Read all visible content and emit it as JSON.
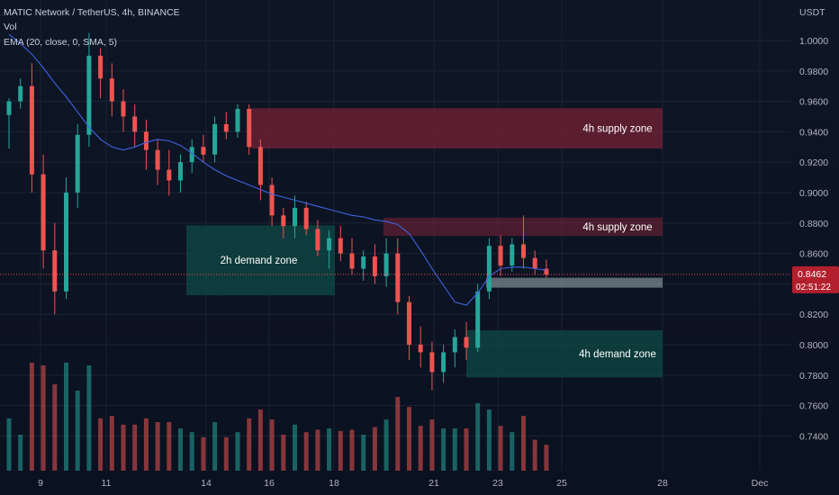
{
  "legend": {
    "symbol_line": "MATIC Network / TetherUS, 4h, BINANCE",
    "volume_line": "Vol",
    "ema_line": "EMA (20, close, 0, SMA, 5)"
  },
  "colors": {
    "background": "#0c1322",
    "up": "#26a69a",
    "down": "#ef5350",
    "ema": "#3f63e0",
    "supply_zone": "#7a2236",
    "demand_zone": "#0f4a45",
    "current_price_box": "#b21f2d",
    "axis_text": "#b2b5be"
  },
  "chart_data": {
    "type": "candlestick",
    "title": "MATIC Network / TetherUS, 4h, BINANCE",
    "currency": "USDT",
    "y_axis": {
      "ticks": [
        "1.0000",
        "0.9800",
        "0.9600",
        "0.9400",
        "0.9200",
        "0.9000",
        "0.8800",
        "0.8600",
        "0.8400",
        "0.8200",
        "0.8000",
        "0.7800",
        "0.7600",
        "0.7400"
      ],
      "range": [
        0.728,
        1.011
      ]
    },
    "x_axis": {
      "labels": [
        "9",
        "11",
        "14",
        "16",
        "18",
        "21",
        "23",
        "25",
        "28",
        "Dec"
      ]
    },
    "current_price": {
      "value": "0.8462",
      "countdown": "02:51:22"
    },
    "ema": {
      "name": "EMA (20, close, 0, SMA, 5)",
      "values": [
        1.004,
        0.998,
        0.991,
        0.982,
        0.972,
        0.963,
        0.953,
        0.943,
        0.935,
        0.93,
        0.928,
        0.93,
        0.933,
        0.935,
        0.934,
        0.931,
        0.926,
        0.92,
        0.915,
        0.911,
        0.908,
        0.905,
        0.902,
        0.899,
        0.897,
        0.895,
        0.893,
        0.891,
        0.889,
        0.887,
        0.885,
        0.884,
        0.882,
        0.881,
        0.879,
        0.873,
        0.862,
        0.85,
        0.839,
        0.828,
        0.826,
        0.834,
        0.845,
        0.85,
        0.851,
        0.851,
        0.85,
        0.849
      ]
    },
    "candles": [
      [
        0.951,
        0.962,
        0.929,
        0.96
      ],
      [
        0.96,
        0.975,
        0.955,
        0.97
      ],
      [
        0.97,
        0.985,
        0.9,
        0.912
      ],
      [
        0.912,
        0.925,
        0.85,
        0.862
      ],
      [
        0.862,
        0.88,
        0.82,
        0.835
      ],
      [
        0.835,
        0.91,
        0.83,
        0.9
      ],
      [
        0.9,
        0.945,
        0.89,
        0.938
      ],
      [
        0.938,
        1.005,
        0.93,
        0.99
      ],
      [
        0.99,
        0.995,
        0.962,
        0.975
      ],
      [
        0.975,
        0.985,
        0.95,
        0.96
      ],
      [
        0.96,
        0.968,
        0.94,
        0.95
      ],
      [
        0.95,
        0.958,
        0.93,
        0.94
      ],
      [
        0.94,
        0.948,
        0.915,
        0.928
      ],
      [
        0.928,
        0.935,
        0.905,
        0.915
      ],
      [
        0.915,
        0.928,
        0.898,
        0.908
      ],
      [
        0.908,
        0.925,
        0.9,
        0.92
      ],
      [
        0.92,
        0.935,
        0.913,
        0.93
      ],
      [
        0.93,
        0.938,
        0.92,
        0.925
      ],
      [
        0.925,
        0.95,
        0.92,
        0.945
      ],
      [
        0.945,
        0.953,
        0.935,
        0.94
      ],
      [
        0.94,
        0.958,
        0.936,
        0.955
      ],
      [
        0.955,
        0.958,
        0.925,
        0.93
      ],
      [
        0.93,
        0.935,
        0.895,
        0.905
      ],
      [
        0.905,
        0.91,
        0.878,
        0.885
      ],
      [
        0.885,
        0.89,
        0.87,
        0.878
      ],
      [
        0.878,
        0.898,
        0.87,
        0.89
      ],
      [
        0.89,
        0.894,
        0.872,
        0.876
      ],
      [
        0.876,
        0.882,
        0.858,
        0.862
      ],
      [
        0.862,
        0.875,
        0.85,
        0.87
      ],
      [
        0.87,
        0.878,
        0.855,
        0.86
      ],
      [
        0.86,
        0.87,
        0.846,
        0.85
      ],
      [
        0.85,
        0.862,
        0.842,
        0.858
      ],
      [
        0.858,
        0.866,
        0.84,
        0.845
      ],
      [
        0.845,
        0.87,
        0.838,
        0.86
      ],
      [
        0.86,
        0.87,
        0.82,
        0.828
      ],
      [
        0.828,
        0.832,
        0.79,
        0.8
      ],
      [
        0.8,
        0.812,
        0.785,
        0.795
      ],
      [
        0.795,
        0.802,
        0.77,
        0.782
      ],
      [
        0.782,
        0.8,
        0.775,
        0.795
      ],
      [
        0.795,
        0.81,
        0.785,
        0.805
      ],
      [
        0.805,
        0.815,
        0.79,
        0.798
      ],
      [
        0.798,
        0.84,
        0.795,
        0.835
      ],
      [
        0.835,
        0.87,
        0.83,
        0.865
      ],
      [
        0.865,
        0.872,
        0.845,
        0.852
      ],
      [
        0.852,
        0.87,
        0.848,
        0.866
      ],
      [
        0.866,
        0.885,
        0.85,
        0.857
      ],
      [
        0.857,
        0.862,
        0.846,
        0.85
      ],
      [
        0.85,
        0.856,
        0.844,
        0.846
      ]
    ],
    "zones": [
      {
        "label": "4h supply zone",
        "kind": "supply",
        "top": 0.9555,
        "bottom": 0.929
      },
      {
        "label": "4h supply zone",
        "kind": "supply",
        "top": 0.8835,
        "bottom": 0.8715
      },
      {
        "label": "2h demand zone",
        "kind": "demand",
        "top": 0.8785,
        "bottom": 0.8325
      },
      {
        "label": "",
        "kind": "demand-light",
        "top": 0.844,
        "bottom": 0.8375
      },
      {
        "label": "4h demand zone",
        "kind": "demand",
        "top": 0.8095,
        "bottom": 0.7785
      }
    ]
  }
}
